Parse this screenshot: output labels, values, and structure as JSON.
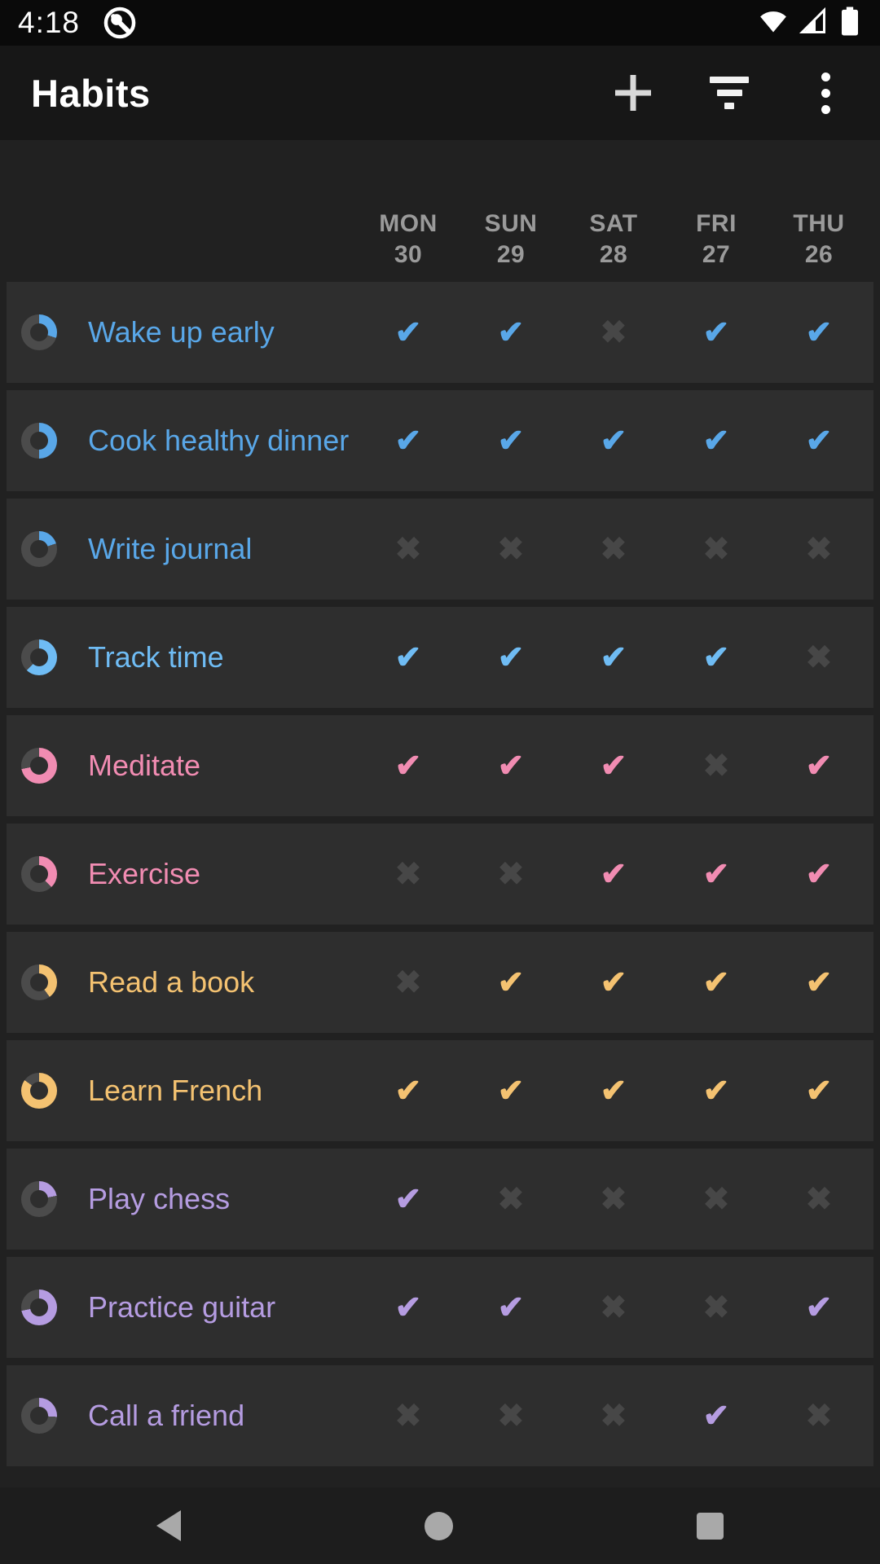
{
  "status_bar": {
    "time": "4:18",
    "icons": [
      "record-circle",
      "wifi",
      "cell-signal",
      "battery"
    ]
  },
  "app_bar": {
    "title": "Habits",
    "actions": [
      "add",
      "filter",
      "more-options"
    ]
  },
  "glyphs": {
    "check": "✔",
    "x": "✖"
  },
  "columns": [
    {
      "day": "MON",
      "date": "30"
    },
    {
      "day": "SUN",
      "date": "29"
    },
    {
      "day": "SAT",
      "date": "28"
    },
    {
      "day": "FRI",
      "date": "27"
    },
    {
      "day": "THU",
      "date": "26"
    }
  ],
  "habits": [
    {
      "name": "Wake up early",
      "color": "#59a7e8",
      "ring_percent": 30,
      "marks": [
        "check",
        "check",
        "x",
        "check",
        "check"
      ]
    },
    {
      "name": "Cook healthy dinner",
      "color": "#59a7e8",
      "ring_percent": 50,
      "marks": [
        "check",
        "check",
        "check",
        "check",
        "check"
      ]
    },
    {
      "name": "Write journal",
      "color": "#59a7e8",
      "ring_percent": 20,
      "marks": [
        "x",
        "x",
        "x",
        "x",
        "x"
      ]
    },
    {
      "name": "Track time",
      "color": "#6fbcf4",
      "ring_percent": 62,
      "marks": [
        "check",
        "check",
        "check",
        "check",
        "x"
      ]
    },
    {
      "name": "Meditate",
      "color": "#f18cb2",
      "ring_percent": 72,
      "marks": [
        "check",
        "check",
        "check",
        "x",
        "check"
      ]
    },
    {
      "name": "Exercise",
      "color": "#f18cb2",
      "ring_percent": 38,
      "marks": [
        "x",
        "x",
        "check",
        "check",
        "check"
      ]
    },
    {
      "name": "Read a book",
      "color": "#f4c271",
      "ring_percent": 40,
      "marks": [
        "x",
        "check",
        "check",
        "check",
        "check"
      ]
    },
    {
      "name": "Learn French",
      "color": "#f4c271",
      "ring_percent": 85,
      "marks": [
        "check",
        "check",
        "check",
        "check",
        "check"
      ]
    },
    {
      "name": "Play chess",
      "color": "#b59ce1",
      "ring_percent": 22,
      "marks": [
        "check",
        "x",
        "x",
        "x",
        "x"
      ]
    },
    {
      "name": "Practice guitar",
      "color": "#b59ce1",
      "ring_percent": 72,
      "marks": [
        "check",
        "check",
        "x",
        "x",
        "check"
      ]
    },
    {
      "name": "Call a friend",
      "color": "#b59ce1",
      "ring_percent": 26,
      "marks": [
        "x",
        "x",
        "x",
        "check",
        "x"
      ]
    }
  ],
  "colors": {
    "page": "#212121",
    "card": "#2e2e2e",
    "status_bar": "#0a0a0a",
    "app_bar": "#171717",
    "nav_bar": "#1d1d1d",
    "header_text": "#9a9a9a",
    "ring_track": "#4b4b4b",
    "x_mark": "#474747",
    "nav_icon": "#a9a9a9"
  },
  "nav": {
    "buttons": [
      "back",
      "home",
      "recents"
    ]
  }
}
